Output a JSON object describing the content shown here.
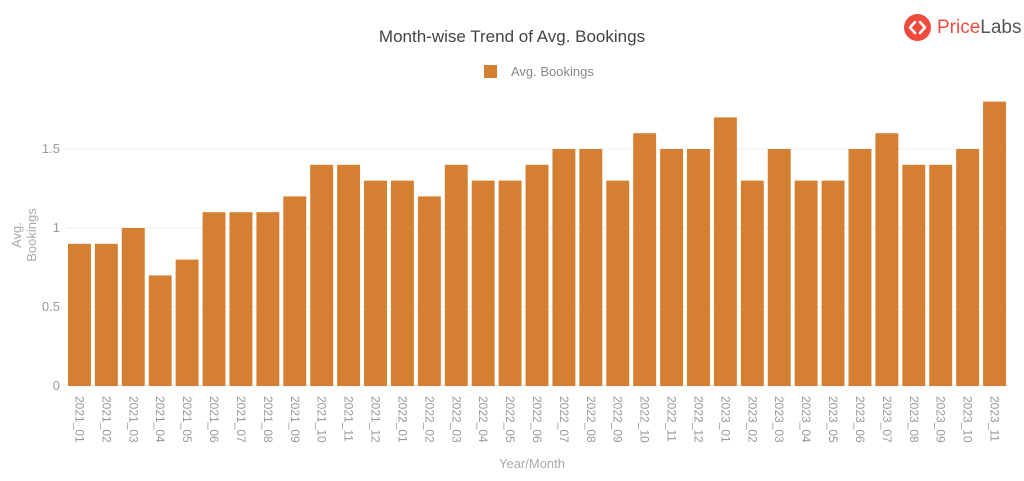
{
  "header": {
    "title": "Month-wise Trend of Avg. Bookings",
    "logo_part1": "Price",
    "logo_part2": "Labs",
    "logo_icon": "code-brackets-icon"
  },
  "legend": {
    "label": "Avg. Bookings",
    "color": "#d47f31"
  },
  "axes": {
    "x_title": "Year/Month",
    "y_title": "Avg. Bookings"
  },
  "colors": {
    "bar": "#d47f31",
    "grid": "#eeeeee",
    "brand": "#ef4a3c"
  },
  "chart_data": {
    "type": "bar",
    "title": "Month-wise Trend of Avg. Bookings",
    "xlabel": "Year/Month",
    "ylabel": "Avg. Bookings",
    "ylim": [
      0,
      1.8
    ],
    "yticks": [
      0,
      0.5,
      1,
      1.5
    ],
    "ytick_labels": [
      "0",
      "0.5",
      "1",
      "1.5"
    ],
    "grid": true,
    "legend_position": "top",
    "categories": [
      "2021_01",
      "2021_02",
      "2021_03",
      "2021_04",
      "2021_05",
      "2021_06",
      "2021_07",
      "2021_08",
      "2021_09",
      "2021_10",
      "2021_11",
      "2021_12",
      "2022_01",
      "2022_02",
      "2022_03",
      "2022_04",
      "2022_05",
      "2022_06",
      "2022_07",
      "2022_08",
      "2022_09",
      "2022_10",
      "2022_11",
      "2022_12",
      "2023_01",
      "2023_02",
      "2023_03",
      "2023_04",
      "2023_05",
      "2023_06",
      "2023_07",
      "2023_08",
      "2023_09",
      "2023_10",
      "2023_11"
    ],
    "series": [
      {
        "name": "Avg. Bookings",
        "values": [
          0.9,
          0.9,
          1.0,
          0.7,
          0.8,
          1.1,
          1.1,
          1.1,
          1.2,
          1.4,
          1.4,
          1.3,
          1.3,
          1.2,
          1.4,
          1.3,
          1.3,
          1.4,
          1.5,
          1.5,
          1.3,
          1.6,
          1.5,
          1.5,
          1.7,
          1.3,
          1.5,
          1.3,
          1.3,
          1.5,
          1.6,
          1.4,
          1.4,
          1.5,
          1.8
        ]
      }
    ]
  }
}
